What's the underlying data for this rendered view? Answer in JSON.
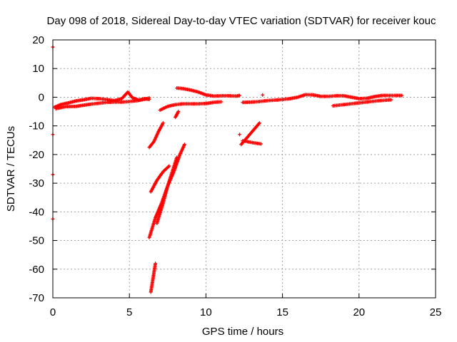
{
  "chart_data": {
    "type": "scatter",
    "title": "Day 098 of 2018, Sidereal Day-to-day VTEC variation (SDTVAR) for receiver kouc",
    "xlabel": "GPS time / hours",
    "ylabel": "SDTVAR / TECUs",
    "xlim": [
      0,
      25
    ],
    "ylim": [
      -70,
      20
    ],
    "xticks": [
      0,
      5,
      10,
      15,
      20,
      25
    ],
    "yticks": [
      20,
      10,
      0,
      -10,
      -20,
      -30,
      -40,
      -50,
      -60,
      -70
    ],
    "grid": true,
    "legend": "none",
    "marker": "+",
    "color": "#ff0000",
    "series": [
      {
        "name": "main-early-upper",
        "points": [
          [
            0.1,
            -3.5
          ],
          [
            0.5,
            -2.6
          ],
          [
            1,
            -2
          ],
          [
            1.5,
            -1.3
          ],
          [
            2,
            -0.9
          ],
          [
            2.5,
            -0.4
          ],
          [
            3,
            -0.5
          ],
          [
            3.5,
            -0.8
          ],
          [
            4,
            -1.2
          ],
          [
            4.5,
            -0.5
          ],
          [
            4.9,
            1.8
          ],
          [
            5.2,
            -0.2
          ],
          [
            5.6,
            -1
          ],
          [
            6,
            -0.5
          ],
          [
            6.3,
            -0.8
          ]
        ]
      },
      {
        "name": "main-early-lower",
        "points": [
          [
            0.2,
            -4
          ],
          [
            0.8,
            -3.3
          ],
          [
            1.5,
            -3.2
          ],
          [
            2,
            -2.8
          ],
          [
            2.5,
            -2.4
          ],
          [
            3,
            -2.1
          ],
          [
            3.5,
            -1.8
          ],
          [
            4,
            -1.7
          ],
          [
            4.5,
            -1.7
          ],
          [
            5,
            -1.5
          ],
          [
            5.5,
            -1.2
          ],
          [
            6,
            -0.7
          ],
          [
            6.3,
            -0.3
          ]
        ]
      },
      {
        "name": "main-mid-upper",
        "points": [
          [
            8.1,
            3.2
          ],
          [
            8.5,
            3
          ],
          [
            9,
            2.5
          ],
          [
            9.5,
            1.8
          ],
          [
            10,
            0.8
          ],
          [
            10.5,
            0.4
          ],
          [
            11,
            0.5
          ],
          [
            11.5,
            0.5
          ],
          [
            12,
            0.4
          ],
          [
            12.2,
            0.6
          ]
        ]
      },
      {
        "name": "main-mid-lower",
        "points": [
          [
            7,
            -4.5
          ],
          [
            7.5,
            -3.2
          ],
          [
            8,
            -2.6
          ],
          [
            8.5,
            -2.3
          ],
          [
            9,
            -2.3
          ],
          [
            9.5,
            -2.3
          ],
          [
            10,
            -2.2
          ],
          [
            10.5,
            -1.8
          ],
          [
            11,
            -1.6
          ]
        ]
      },
      {
        "name": "main-late",
        "points": [
          [
            12.4,
            -1.8
          ],
          [
            13,
            -1.7
          ],
          [
            13.5,
            -1.5
          ],
          [
            14,
            -1.2
          ],
          [
            14.5,
            -1
          ],
          [
            15,
            -0.8
          ],
          [
            15.5,
            -0.5
          ],
          [
            16,
            0
          ],
          [
            16.5,
            0.9
          ],
          [
            17,
            0.8
          ],
          [
            17.5,
            0.3
          ],
          [
            18,
            0.3
          ],
          [
            18.5,
            0.5
          ],
          [
            19,
            0.5
          ],
          [
            19.5,
            0
          ],
          [
            20,
            -0.5
          ],
          [
            20.5,
            -0.4
          ],
          [
            21,
            0.2
          ],
          [
            21.5,
            0.6
          ],
          [
            22,
            0.6
          ],
          [
            22.5,
            0.6
          ],
          [
            22.8,
            0.6
          ]
        ]
      },
      {
        "name": "main-late-lower",
        "points": [
          [
            18.3,
            -3
          ],
          [
            18.8,
            -2.7
          ],
          [
            19.3,
            -2.4
          ],
          [
            19.8,
            -2.1
          ],
          [
            20.3,
            -1.8
          ],
          [
            20.8,
            -1.5
          ],
          [
            21.3,
            -1.2
          ],
          [
            21.8,
            -1
          ],
          [
            22.1,
            -0.9
          ]
        ]
      },
      {
        "name": "descent-a",
        "points": [
          [
            6.3,
            -17.5
          ],
          [
            6.6,
            -15.5
          ],
          [
            6.9,
            -12
          ],
          [
            7.2,
            -9
          ]
        ]
      },
      {
        "name": "descent-b",
        "points": [
          [
            6.4,
            -33
          ],
          [
            6.8,
            -29
          ],
          [
            7.2,
            -26
          ],
          [
            7.6,
            -24
          ]
        ]
      },
      {
        "name": "descent-c",
        "points": [
          [
            6.3,
            -49
          ],
          [
            6.7,
            -42
          ],
          [
            7.1,
            -37
          ],
          [
            7.5,
            -31
          ],
          [
            7.9,
            -26
          ],
          [
            8.3,
            -20
          ],
          [
            8.6,
            -16.5
          ]
        ]
      },
      {
        "name": "descent-d",
        "points": [
          [
            6.8,
            -44
          ],
          [
            7.2,
            -37
          ],
          [
            7.5,
            -31
          ],
          [
            7.8,
            -26
          ],
          [
            8.1,
            -21
          ]
        ]
      },
      {
        "name": "descent-e",
        "points": [
          [
            6.4,
            -68
          ],
          [
            6.55,
            -63
          ],
          [
            6.7,
            -58
          ]
        ]
      },
      {
        "name": "short-rise",
        "points": [
          [
            8,
            -7
          ],
          [
            8.1,
            -6
          ],
          [
            8.2,
            -5
          ]
        ]
      },
      {
        "name": "cluster-13h",
        "points": [
          [
            12.3,
            -16.5
          ],
          [
            12.7,
            -14
          ],
          [
            13.1,
            -11.5
          ],
          [
            13.5,
            -9
          ]
        ]
      },
      {
        "name": "cluster-13h-flat",
        "points": [
          [
            12.4,
            -15.2
          ],
          [
            12.8,
            -15.6
          ],
          [
            13.2,
            -16
          ],
          [
            13.6,
            -16.3
          ]
        ]
      },
      {
        "name": "outliers",
        "points": [
          [
            0,
            17.5
          ],
          [
            0,
            -13
          ],
          [
            0,
            -27
          ],
          [
            0,
            -42.5
          ],
          [
            12.2,
            -13
          ],
          [
            13.7,
            0.8
          ]
        ]
      }
    ]
  }
}
